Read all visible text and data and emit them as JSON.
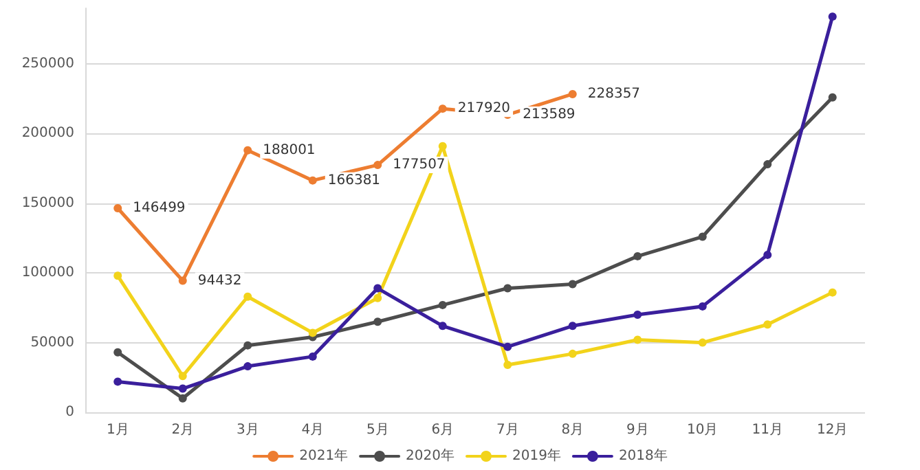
{
  "chart_data": {
    "type": "line",
    "categories": [
      "1月",
      "2月",
      "3月",
      "4月",
      "5月",
      "6月",
      "7月",
      "8月",
      "9月",
      "10月",
      "11月",
      "12月"
    ],
    "series": [
      {
        "name": "2021年",
        "color": "#ed7d31",
        "values": [
          146499,
          94432,
          188001,
          166381,
          177507,
          217920,
          213589,
          228357,
          null,
          null,
          null,
          null
        ],
        "value_labels": [
          "146499",
          "94432",
          "188001",
          "166381",
          "177507",
          "217920",
          "213589",
          "228357",
          null,
          null,
          null,
          null
        ]
      },
      {
        "name": "2020年",
        "color": "#4d4d4d",
        "values": [
          43000,
          10000,
          48000,
          54000,
          65000,
          77000,
          89000,
          92000,
          112000,
          126000,
          178000,
          226000
        ]
      },
      {
        "name": "2019年",
        "color": "#f2d31b",
        "values": [
          98000,
          26000,
          83000,
          57000,
          82000,
          191000,
          34000,
          42000,
          52000,
          50000,
          63000,
          86000
        ]
      },
      {
        "name": "2018年",
        "color": "#3a1f9c",
        "values": [
          22000,
          17000,
          33000,
          40000,
          89000,
          62000,
          47000,
          62000,
          70000,
          76000,
          113000,
          284000
        ]
      }
    ],
    "ylim": [
      0,
      290000
    ],
    "yticks": [
      0,
      50000,
      100000,
      150000,
      200000,
      250000
    ],
    "grid": "y",
    "legend": "bottom",
    "marker": "circle",
    "line_style": "solid"
  }
}
